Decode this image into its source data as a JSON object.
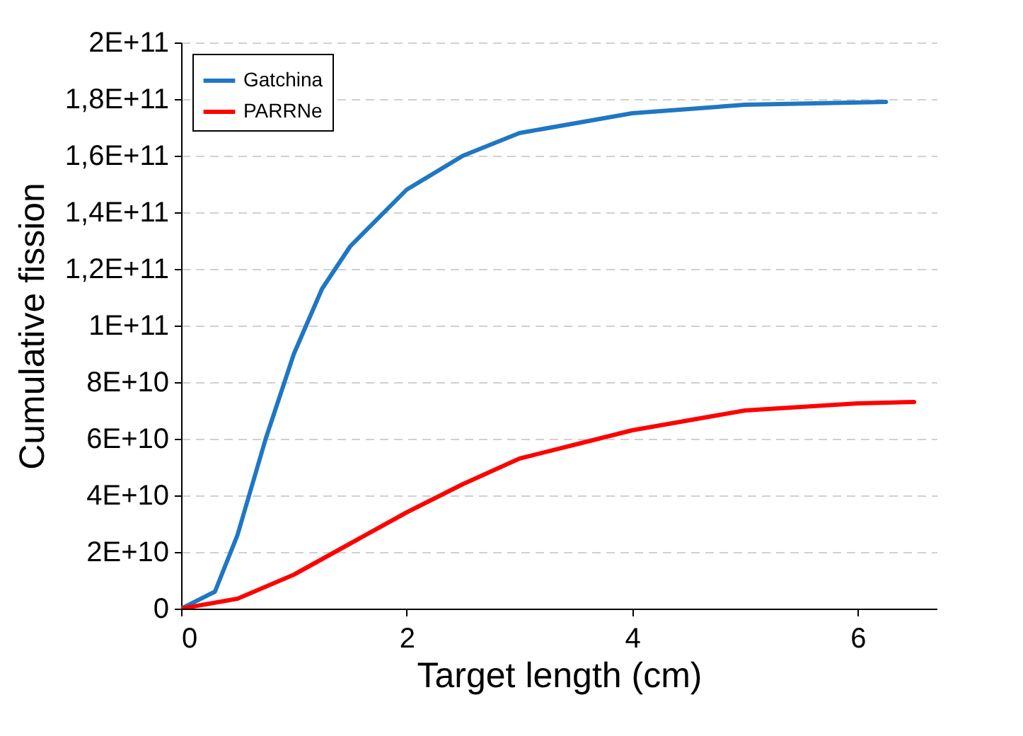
{
  "chart_data": {
    "type": "line",
    "xlabel": "Target length (cm)",
    "ylabel": "Cumulative fission",
    "xlim": [
      0,
      6.7
    ],
    "xticks": [
      0,
      2,
      4,
      6
    ],
    "ylim": [
      0,
      200000000000
    ],
    "yticks": [
      {
        "value": 0,
        "label": "0"
      },
      {
        "value": 20000000000,
        "label": "2E+10"
      },
      {
        "value": 40000000000,
        "label": "4E+10"
      },
      {
        "value": 60000000000,
        "label": "6E+10"
      },
      {
        "value": 80000000000,
        "label": "8E+10"
      },
      {
        "value": 100000000000,
        "label": "1E+11"
      },
      {
        "value": 120000000000,
        "label": "1,2E+11"
      },
      {
        "value": 140000000000,
        "label": "1,4E+11"
      },
      {
        "value": 160000000000,
        "label": "1,6E+11"
      },
      {
        "value": 180000000000,
        "label": "1,8E+11"
      },
      {
        "value": 200000000000,
        "label": "2E+11"
      }
    ],
    "grid": "y",
    "legend": "top left",
    "series": [
      {
        "name": "Gatchina",
        "color": "#1f77c4",
        "x": [
          0,
          0.3,
          0.5,
          0.75,
          1,
          1.25,
          1.5,
          2,
          2.5,
          3,
          4,
          5,
          6.25
        ],
        "values": [
          0,
          6000000000,
          26000000000,
          60000000000,
          90000000000,
          113000000000,
          128000000000,
          148000000000,
          160000000000,
          168000000000,
          175000000000,
          178000000000,
          179000000000
        ]
      },
      {
        "name": "PARRNe",
        "color": "#ff0000",
        "x": [
          0,
          0.5,
          1,
          1.5,
          2,
          2.5,
          3,
          3.5,
          4,
          5,
          6,
          6.5
        ],
        "values": [
          0,
          3500000000,
          12000000000,
          23000000000,
          34000000000,
          44000000000,
          53000000000,
          58000000000,
          63000000000,
          70000000000,
          72500000000,
          73000000000
        ]
      }
    ]
  }
}
